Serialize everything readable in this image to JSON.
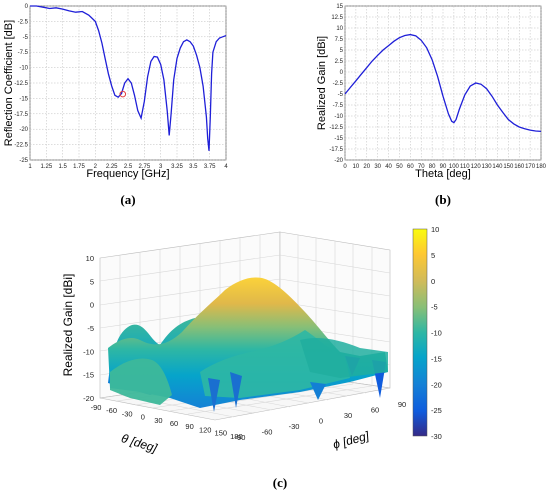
{
  "captions": {
    "a": "(a)",
    "b": "(b)",
    "c": "(c)"
  },
  "chart_data": [
    {
      "type": "line",
      "xlabel": "Frequency [GHz]",
      "ylabel": "Reflection Coefficient [dB]",
      "xlim": [
        1,
        4
      ],
      "ylim": [
        -25,
        0
      ],
      "xticks": [
        "1",
        "1.25",
        "1.5",
        "1.75",
        "2",
        "2.25",
        "2.5",
        "2.75",
        "3",
        "3.25",
        "3.5",
        "3.75",
        "4"
      ],
      "yticks": [
        "0",
        "-2.5",
        "-5",
        "-7.5",
        "-10",
        "-12.5",
        "-15",
        "-17.5",
        "-20",
        "-22.5",
        "-25"
      ],
      "grid": true,
      "series": [
        {
          "color": "#1f1fd8",
          "x": [
            1.0,
            1.1,
            1.2,
            1.3,
            1.4,
            1.5,
            1.6,
            1.7,
            1.8,
            1.9,
            2.0,
            2.05,
            2.1,
            2.15,
            2.2,
            2.25,
            2.3,
            2.35,
            2.4,
            2.45,
            2.5,
            2.55,
            2.6,
            2.65,
            2.7,
            2.75,
            2.8,
            2.85,
            2.9,
            2.95,
            3.0,
            3.05,
            3.1,
            3.13,
            3.16,
            3.2,
            3.25,
            3.3,
            3.35,
            3.4,
            3.45,
            3.5,
            3.55,
            3.6,
            3.65,
            3.7,
            3.72,
            3.74,
            3.76,
            3.78,
            3.8,
            3.85,
            3.9,
            3.95,
            4.0
          ],
          "y": [
            0,
            0,
            -0.2,
            -0.4,
            -0.3,
            -0.5,
            -0.8,
            -1.0,
            -0.9,
            -1.5,
            -2.5,
            -4.0,
            -6.0,
            -8.5,
            -11.0,
            -13.0,
            -14.5,
            -14.8,
            -14.2,
            -12.5,
            -11.8,
            -12.5,
            -14.5,
            -17.0,
            -18.2,
            -15.5,
            -11.5,
            -9.0,
            -8.2,
            -8.3,
            -9.5,
            -12.0,
            -17.0,
            -21.0,
            -17.5,
            -12.0,
            -8.5,
            -6.8,
            -5.8,
            -5.5,
            -5.8,
            -6.5,
            -8.0,
            -10.0,
            -13.0,
            -18.0,
            -21.5,
            -23.5,
            -18.0,
            -11.0,
            -7.5,
            -5.8,
            -5.2,
            -5.0,
            -4.8
          ]
        }
      ],
      "marker": {
        "x": 2.42,
        "y": -14.3,
        "color": "#e04040"
      }
    },
    {
      "type": "line",
      "xlabel": "Theta [deg]",
      "ylabel": "Realized Gain [dBi]",
      "xlim": [
        0,
        180
      ],
      "ylim": [
        -20,
        15
      ],
      "xticks": [
        "0",
        "10",
        "20",
        "30",
        "40",
        "50",
        "60",
        "70",
        "80",
        "90",
        "100",
        "110",
        "120",
        "130",
        "140",
        "150",
        "160",
        "170",
        "180"
      ],
      "yticks": [
        "15",
        "12.5",
        "10",
        "7.5",
        "5",
        "2.5",
        "0",
        "-2.5",
        "-5",
        "-7.5",
        "-10",
        "-12.5",
        "-15",
        "-17.5",
        "-20"
      ],
      "grid": true,
      "series": [
        {
          "color": "#1f1fd8",
          "x": [
            0,
            5,
            10,
            15,
            20,
            25,
            30,
            35,
            40,
            45,
            50,
            55,
            60,
            65,
            70,
            75,
            80,
            85,
            90,
            95,
            98,
            100,
            102,
            105,
            110,
            115,
            120,
            125,
            130,
            135,
            140,
            145,
            150,
            155,
            160,
            165,
            170,
            175,
            180
          ],
          "y": [
            -5,
            -3.5,
            -2,
            -0.5,
            1,
            2.5,
            3.8,
            5,
            6,
            7,
            7.8,
            8.3,
            8.5,
            8.2,
            7.2,
            5.5,
            2.8,
            -1,
            -5.5,
            -9.5,
            -11.2,
            -11.5,
            -10.8,
            -8.5,
            -5.2,
            -3.2,
            -2.5,
            -2.8,
            -3.8,
            -5.5,
            -7.5,
            -9.2,
            -10.8,
            -11.8,
            -12.5,
            -12.9,
            -13.2,
            -13.4,
            -13.5
          ]
        }
      ]
    },
    {
      "type": "surface",
      "xlabel": "θ [deg]",
      "ylabel": "ϕ [deg]",
      "zlabel": "Realized Gain [dBi]",
      "zlim": [
        -20,
        10
      ],
      "zticks": [
        "10",
        "5",
        "0",
        "-5",
        "-10",
        "-15",
        "-20"
      ],
      "theta_ticks": [
        "-90",
        "-60",
        "-30",
        "0",
        "30",
        "60",
        "90",
        "120",
        "150",
        "180"
      ],
      "phi_ticks": [
        "-90",
        "-60",
        "-30",
        "0",
        "30",
        "60",
        "90"
      ],
      "colorbar": {
        "ticks": [
          "10",
          "5",
          "0",
          "-5",
          "-10",
          "-15",
          "-20",
          "-25",
          "-30"
        ],
        "range": [
          -30,
          10
        ]
      },
      "peak_gain": 8.5
    }
  ]
}
